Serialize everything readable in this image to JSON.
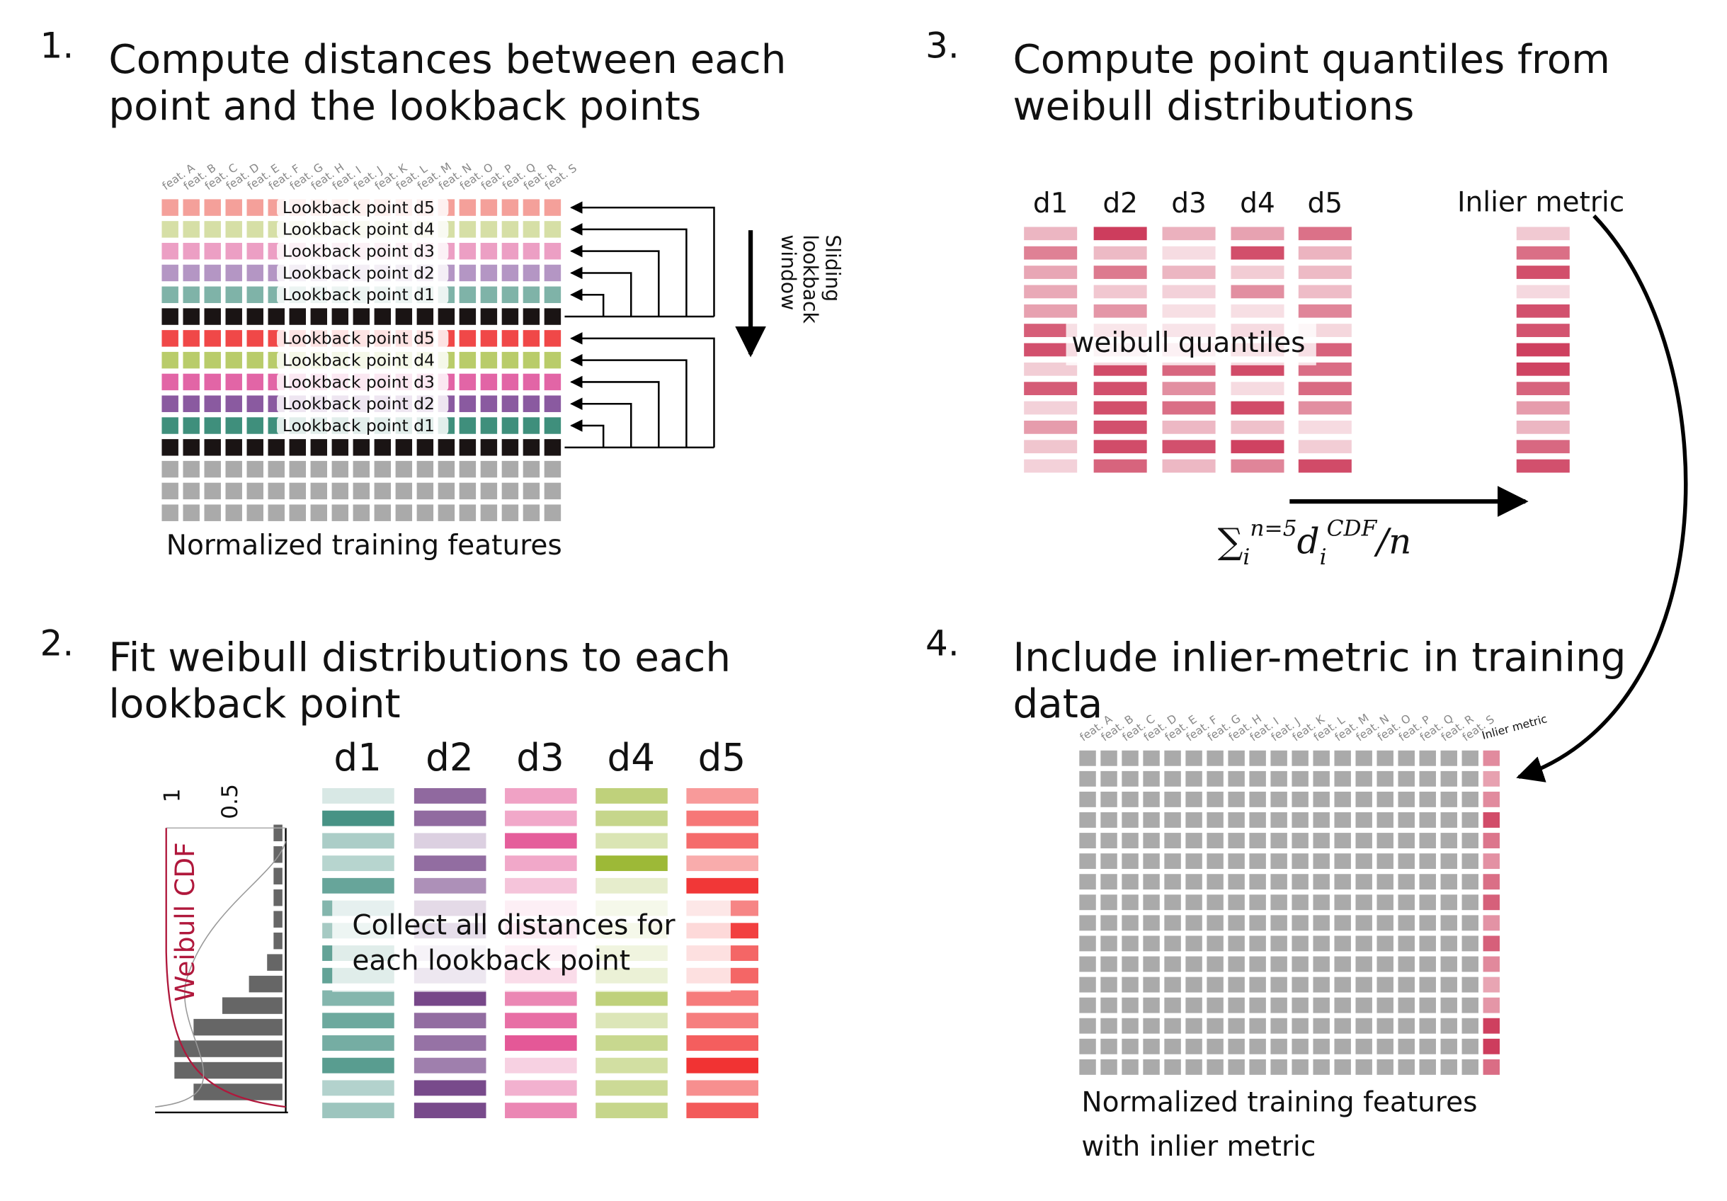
{
  "panel1": {
    "number": "1.",
    "title": [
      "Compute distances between each",
      "point and the lookback points"
    ],
    "features": [
      "feat. A",
      "feat. B",
      "feat. C",
      "feat. D",
      "feat. E",
      "feat. F",
      "feat. G",
      "feat. H",
      "feat. I",
      "feat. J",
      "feat. K",
      "feat. L",
      "feat. M",
      "feat. N",
      "feat. O",
      "feat. P",
      "feat. Q",
      "feat. R",
      "feat. S"
    ],
    "lookback_labels": [
      "Lookback point d5",
      "Lookback point d4",
      "Lookback point d3",
      "Lookback point d2",
      "Lookback point d1"
    ],
    "window_label": [
      "Sliding",
      "lookback",
      "window"
    ],
    "caption": "Normalized training features"
  },
  "panel2": {
    "number": "2.",
    "title": [
      "Fit weibull distributions to each",
      "lookback point"
    ],
    "columns": [
      "d1",
      "d2",
      "d3",
      "d4",
      "d5"
    ],
    "axis_ticks": [
      "1",
      "0.5"
    ],
    "axis_label": "Weibull CDF",
    "overlay": [
      "Collect all distances for",
      "each lookback point"
    ]
  },
  "panel3": {
    "number": "3.",
    "title": [
      "Compute point quantiles from",
      "weibull distributions"
    ],
    "columns": [
      "d1",
      "d2",
      "d3",
      "d4",
      "d5"
    ],
    "inlier_label": "Inlier metric",
    "overlay": "weibull quantiles",
    "formula": {
      "sum": "∑",
      "sum_sub": "i",
      "sum_sup": "n=5",
      "term": "d",
      "term_sub": "i",
      "term_sup": "CDF",
      "tail": "/n"
    }
  },
  "panel4": {
    "number": "4.",
    "title": [
      "Include inlier-metric in training",
      "data"
    ],
    "extra_feature": "Inlier metric",
    "caption": [
      "Normalized training features",
      "with inlier metric"
    ]
  }
}
